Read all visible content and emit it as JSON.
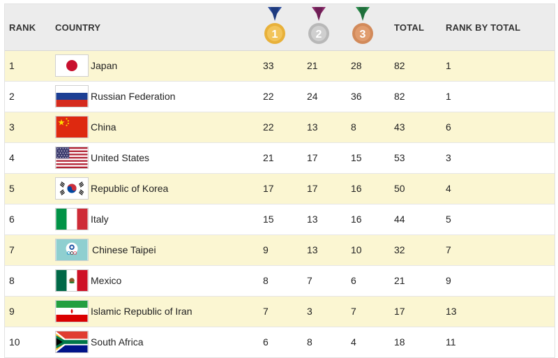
{
  "headers": {
    "rank": "RANK",
    "country": "COUNTRY",
    "total": "TOTAL",
    "rank_by_total": "RANK BY TOTAL",
    "gold_num": "1",
    "silver_num": "2",
    "bronze_num": "3"
  },
  "colors": {
    "gold": "#e8b13a",
    "silver": "#b8b8b8",
    "bronze": "#d28a5a",
    "ribbon_gold": "#2a4a9a",
    "ribbon_silver": "#8a2a6a",
    "ribbon_bronze": "#2a8a4a",
    "odd_row": "#fbf6d2"
  },
  "rows": [
    {
      "rank": "1",
      "country": "Japan",
      "flag": "japan-flag-icon",
      "gold": "33",
      "silver": "21",
      "bronze": "28",
      "total": "82",
      "rank_by_total": "1"
    },
    {
      "rank": "2",
      "country": "Russian Federation",
      "flag": "russia-flag-icon",
      "gold": "22",
      "silver": "24",
      "bronze": "36",
      "total": "82",
      "rank_by_total": "1"
    },
    {
      "rank": "3",
      "country": "China",
      "flag": "china-flag-icon",
      "gold": "22",
      "silver": "13",
      "bronze": "8",
      "total": "43",
      "rank_by_total": "6"
    },
    {
      "rank": "4",
      "country": "United States",
      "flag": "usa-flag-icon",
      "gold": "21",
      "silver": "17",
      "bronze": "15",
      "total": "53",
      "rank_by_total": "3"
    },
    {
      "rank": "5",
      "country": "Republic of Korea",
      "flag": "korea-flag-icon",
      "gold": "17",
      "silver": "17",
      "bronze": "16",
      "total": "50",
      "rank_by_total": "4"
    },
    {
      "rank": "6",
      "country": "Italy",
      "flag": "italy-flag-icon",
      "gold": "15",
      "silver": "13",
      "bronze": "16",
      "total": "44",
      "rank_by_total": "5"
    },
    {
      "rank": "7",
      "country": "Chinese Taipei",
      "flag": "chinese-taipei-flag-icon",
      "gold": "9",
      "silver": "13",
      "bronze": "10",
      "total": "32",
      "rank_by_total": "7"
    },
    {
      "rank": "8",
      "country": "Mexico",
      "flag": "mexico-flag-icon",
      "gold": "8",
      "silver": "7",
      "bronze": "6",
      "total": "21",
      "rank_by_total": "9"
    },
    {
      "rank": "9",
      "country": "Islamic Republic of Iran",
      "flag": "iran-flag-icon",
      "gold": "7",
      "silver": "3",
      "bronze": "7",
      "total": "17",
      "rank_by_total": "13"
    },
    {
      "rank": "10",
      "country": "South Africa",
      "flag": "south-africa-flag-icon",
      "gold": "6",
      "silver": "8",
      "bronze": "4",
      "total": "18",
      "rank_by_total": "11"
    }
  ]
}
